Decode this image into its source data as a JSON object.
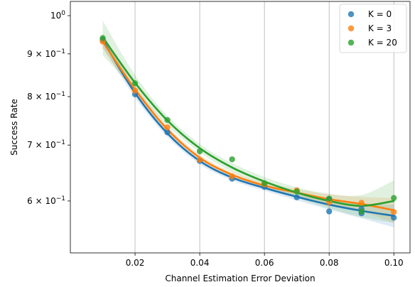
{
  "chart_data": {
    "type": "scatter",
    "xlabel": "Channel Estimation Error Deviation",
    "ylabel": "Success Rate",
    "xlim": [
      0.0,
      0.105
    ],
    "ylim": [
      0.52,
      1.04
    ],
    "y_scale": "log",
    "grid": "x-only",
    "legend_position": "top-right",
    "x_ticks": [
      {
        "value": 0.02,
        "label": "0.02"
      },
      {
        "value": 0.04,
        "label": "0.04"
      },
      {
        "value": 0.06,
        "label": "0.06"
      },
      {
        "value": 0.08,
        "label": "0.08"
      },
      {
        "value": 0.1,
        "label": "0.10"
      }
    ],
    "y_ticks": [
      {
        "value": 1.0,
        "mantissa": "",
        "exponent": "0"
      },
      {
        "value": 0.9,
        "mantissa": "9",
        "exponent": "−1"
      },
      {
        "value": 0.8,
        "mantissa": "8",
        "exponent": "−1"
      },
      {
        "value": 0.7,
        "mantissa": "7",
        "exponent": "−1"
      },
      {
        "value": 0.6,
        "mantissa": "6",
        "exponent": "−1"
      }
    ],
    "x": [
      0.01,
      0.02,
      0.03,
      0.04,
      0.05,
      0.06,
      0.07,
      0.08,
      0.09,
      0.1
    ],
    "series": [
      {
        "name": "K = 0",
        "color": "#1f77b4",
        "values": [
          0.935,
          0.805,
          0.725,
          0.67,
          0.638,
          0.624,
          0.606,
          0.583,
          0.58,
          0.573
        ],
        "extra_points": [
          {
            "x": 0.08,
            "y": 0.603
          },
          {
            "x": 0.09,
            "y": 0.587
          }
        ],
        "fit": [
          0.935,
          0.808,
          0.723,
          0.67,
          0.64,
          0.622,
          0.607,
          0.594,
          0.584,
          0.576
        ],
        "band": [
          0.018,
          0.01,
          0.007,
          0.006,
          0.005,
          0.005,
          0.006,
          0.008,
          0.012,
          0.018
        ]
      },
      {
        "name": "K = 3",
        "color": "#ff7f0e",
        "values": [
          0.931,
          0.813,
          0.735,
          0.672,
          0.642,
          0.628,
          0.618,
          0.598,
          0.597,
          0.582
        ],
        "fit": [
          0.931,
          0.816,
          0.731,
          0.676,
          0.645,
          0.626,
          0.614,
          0.603,
          0.595,
          0.585
        ],
        "band": [
          0.018,
          0.01,
          0.007,
          0.006,
          0.005,
          0.005,
          0.006,
          0.008,
          0.012,
          0.02
        ]
      },
      {
        "name": "K = 20",
        "color": "#2ca02c",
        "values": [
          0.94,
          0.83,
          0.75,
          0.688,
          0.673,
          0.63,
          0.616,
          0.604,
          0.583,
          0.605
        ],
        "fit": [
          0.942,
          0.831,
          0.749,
          0.694,
          0.658,
          0.633,
          0.614,
          0.6,
          0.592,
          0.6
        ],
        "band": [
          0.045,
          0.018,
          0.01,
          0.008,
          0.008,
          0.008,
          0.009,
          0.012,
          0.018,
          0.035
        ]
      }
    ]
  }
}
